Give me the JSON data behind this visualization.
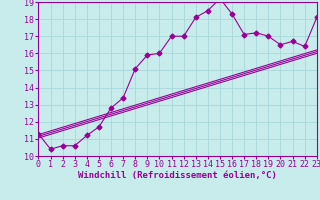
{
  "xlabel": "Windchill (Refroidissement éolien,°C)",
  "background_color": "#c8ecec",
  "grid_color": "#a8d8d8",
  "line_color": "#990099",
  "xlim": [
    0,
    23
  ],
  "ylim": [
    10,
    19
  ],
  "x_ticks": [
    0,
    1,
    2,
    3,
    4,
    5,
    6,
    7,
    8,
    9,
    10,
    11,
    12,
    13,
    14,
    15,
    16,
    17,
    18,
    19,
    20,
    21,
    22,
    23
  ],
  "y_ticks": [
    10,
    11,
    12,
    13,
    14,
    15,
    16,
    17,
    18,
    19
  ],
  "jagged_x": [
    0,
    1,
    2,
    3,
    4,
    5,
    6,
    7,
    8,
    9,
    10,
    11,
    12,
    13,
    14,
    15,
    16,
    17,
    18,
    19,
    20,
    21,
    22,
    23
  ],
  "jagged_y": [
    11.3,
    10.4,
    10.6,
    10.6,
    11.2,
    11.7,
    12.8,
    13.4,
    15.1,
    15.9,
    16.0,
    17.0,
    17.0,
    18.1,
    18.5,
    19.2,
    18.3,
    17.1,
    17.2,
    17.0,
    16.5,
    16.7,
    16.4,
    18.1
  ],
  "line1_x": [
    0,
    23
  ],
  "line1_y": [
    11.05,
    16.0
  ],
  "line2_x": [
    0,
    23
  ],
  "line2_y": [
    11.15,
    16.1
  ],
  "line3_x": [
    0,
    23
  ],
  "line3_y": [
    11.25,
    16.2
  ],
  "tick_fontsize": 6,
  "label_fontsize": 6.5
}
